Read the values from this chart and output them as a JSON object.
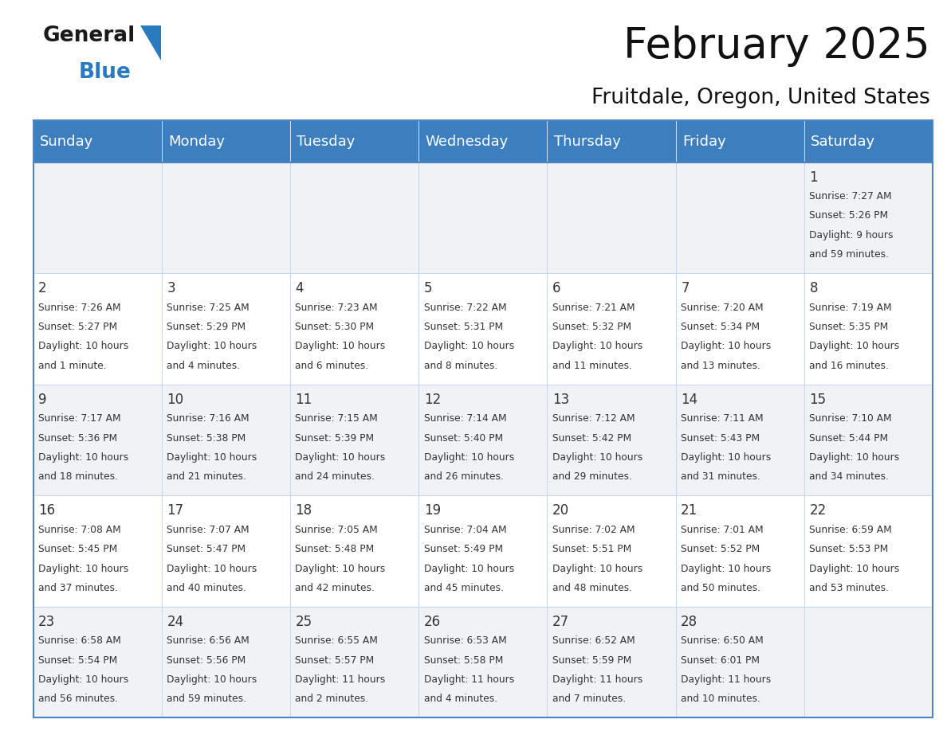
{
  "title": "February 2025",
  "subtitle": "Fruitdale, Oregon, United States",
  "header_bg": "#3d7ebf",
  "header_text_color": "#ffffff",
  "cell_bg_white": "#ffffff",
  "cell_bg_gray": "#f0f2f5",
  "grid_color": "#4a86c8",
  "grid_color_light": "#c5d8ef",
  "day_number_color": "#333333",
  "cell_text_color": "#333333",
  "days_of_week": [
    "Sunday",
    "Monday",
    "Tuesday",
    "Wednesday",
    "Thursday",
    "Friday",
    "Saturday"
  ],
  "weeks": [
    [
      {
        "day": null,
        "info": null
      },
      {
        "day": null,
        "info": null
      },
      {
        "day": null,
        "info": null
      },
      {
        "day": null,
        "info": null
      },
      {
        "day": null,
        "info": null
      },
      {
        "day": null,
        "info": null
      },
      {
        "day": 1,
        "info": "Sunrise: 7:27 AM\nSunset: 5:26 PM\nDaylight: 9 hours\nand 59 minutes."
      }
    ],
    [
      {
        "day": 2,
        "info": "Sunrise: 7:26 AM\nSunset: 5:27 PM\nDaylight: 10 hours\nand 1 minute."
      },
      {
        "day": 3,
        "info": "Sunrise: 7:25 AM\nSunset: 5:29 PM\nDaylight: 10 hours\nand 4 minutes."
      },
      {
        "day": 4,
        "info": "Sunrise: 7:23 AM\nSunset: 5:30 PM\nDaylight: 10 hours\nand 6 minutes."
      },
      {
        "day": 5,
        "info": "Sunrise: 7:22 AM\nSunset: 5:31 PM\nDaylight: 10 hours\nand 8 minutes."
      },
      {
        "day": 6,
        "info": "Sunrise: 7:21 AM\nSunset: 5:32 PM\nDaylight: 10 hours\nand 11 minutes."
      },
      {
        "day": 7,
        "info": "Sunrise: 7:20 AM\nSunset: 5:34 PM\nDaylight: 10 hours\nand 13 minutes."
      },
      {
        "day": 8,
        "info": "Sunrise: 7:19 AM\nSunset: 5:35 PM\nDaylight: 10 hours\nand 16 minutes."
      }
    ],
    [
      {
        "day": 9,
        "info": "Sunrise: 7:17 AM\nSunset: 5:36 PM\nDaylight: 10 hours\nand 18 minutes."
      },
      {
        "day": 10,
        "info": "Sunrise: 7:16 AM\nSunset: 5:38 PM\nDaylight: 10 hours\nand 21 minutes."
      },
      {
        "day": 11,
        "info": "Sunrise: 7:15 AM\nSunset: 5:39 PM\nDaylight: 10 hours\nand 24 minutes."
      },
      {
        "day": 12,
        "info": "Sunrise: 7:14 AM\nSunset: 5:40 PM\nDaylight: 10 hours\nand 26 minutes."
      },
      {
        "day": 13,
        "info": "Sunrise: 7:12 AM\nSunset: 5:42 PM\nDaylight: 10 hours\nand 29 minutes."
      },
      {
        "day": 14,
        "info": "Sunrise: 7:11 AM\nSunset: 5:43 PM\nDaylight: 10 hours\nand 31 minutes."
      },
      {
        "day": 15,
        "info": "Sunrise: 7:10 AM\nSunset: 5:44 PM\nDaylight: 10 hours\nand 34 minutes."
      }
    ],
    [
      {
        "day": 16,
        "info": "Sunrise: 7:08 AM\nSunset: 5:45 PM\nDaylight: 10 hours\nand 37 minutes."
      },
      {
        "day": 17,
        "info": "Sunrise: 7:07 AM\nSunset: 5:47 PM\nDaylight: 10 hours\nand 40 minutes."
      },
      {
        "day": 18,
        "info": "Sunrise: 7:05 AM\nSunset: 5:48 PM\nDaylight: 10 hours\nand 42 minutes."
      },
      {
        "day": 19,
        "info": "Sunrise: 7:04 AM\nSunset: 5:49 PM\nDaylight: 10 hours\nand 45 minutes."
      },
      {
        "day": 20,
        "info": "Sunrise: 7:02 AM\nSunset: 5:51 PM\nDaylight: 10 hours\nand 48 minutes."
      },
      {
        "day": 21,
        "info": "Sunrise: 7:01 AM\nSunset: 5:52 PM\nDaylight: 10 hours\nand 50 minutes."
      },
      {
        "day": 22,
        "info": "Sunrise: 6:59 AM\nSunset: 5:53 PM\nDaylight: 10 hours\nand 53 minutes."
      }
    ],
    [
      {
        "day": 23,
        "info": "Sunrise: 6:58 AM\nSunset: 5:54 PM\nDaylight: 10 hours\nand 56 minutes."
      },
      {
        "day": 24,
        "info": "Sunrise: 6:56 AM\nSunset: 5:56 PM\nDaylight: 10 hours\nand 59 minutes."
      },
      {
        "day": 25,
        "info": "Sunrise: 6:55 AM\nSunset: 5:57 PM\nDaylight: 11 hours\nand 2 minutes."
      },
      {
        "day": 26,
        "info": "Sunrise: 6:53 AM\nSunset: 5:58 PM\nDaylight: 11 hours\nand 4 minutes."
      },
      {
        "day": 27,
        "info": "Sunrise: 6:52 AM\nSunset: 5:59 PM\nDaylight: 11 hours\nand 7 minutes."
      },
      {
        "day": 28,
        "info": "Sunrise: 6:50 AM\nSunset: 6:01 PM\nDaylight: 11 hours\nand 10 minutes."
      },
      {
        "day": null,
        "info": null
      }
    ]
  ],
  "logo_general_color": "#1a1a1a",
  "logo_blue_color": "#2a7abf",
  "logo_triangle_color": "#2a7abf",
  "row_colors": [
    "#f0f2f5",
    "#ffffff",
    "#f0f2f5",
    "#ffffff",
    "#f0f2f5"
  ]
}
